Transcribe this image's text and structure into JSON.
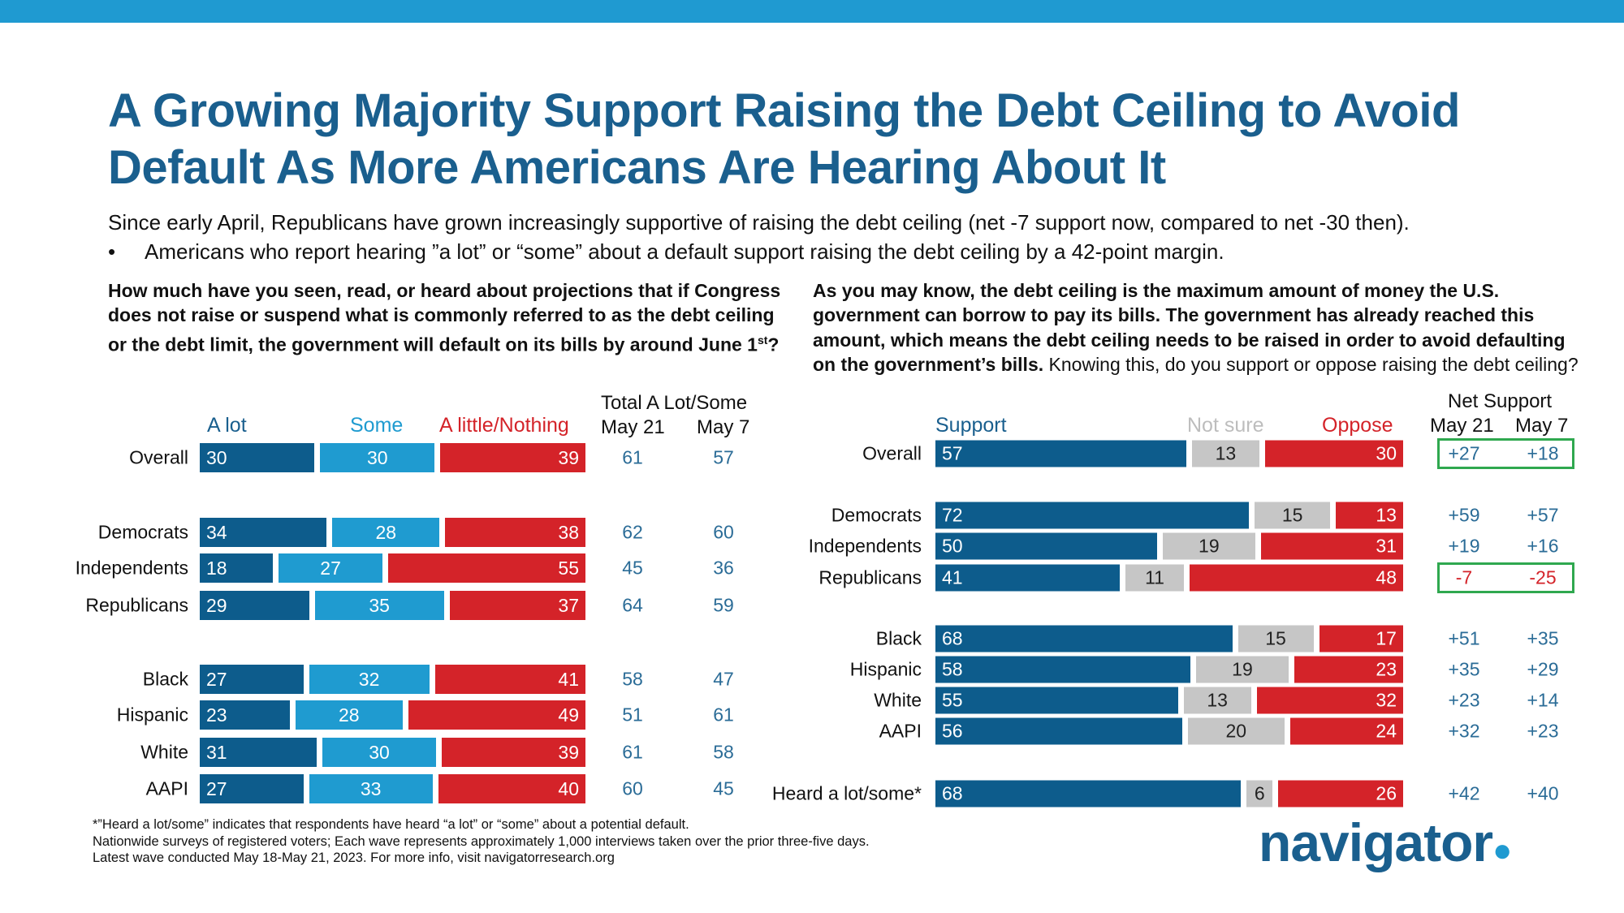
{
  "title": "A Growing Majority Support Raising the Debt Ceiling to Avoid Default As More Americans Are Hearing About It",
  "subtitle": "Since early April, Republicans have grown increasingly supportive of raising the debt ceiling (net -7 support now, compared to net -30 then).",
  "bullet": "Americans who report hearing ”a lot” or “some” about a default support raising the debt ceiling by a 42-point margin.",
  "bullet_mark": "•",
  "colors": {
    "dark_blue": "#0d5c8c",
    "light_blue": "#1f9bd0",
    "red": "#d42329",
    "gray": "#c6c6c6",
    "title": "#1a5f8e",
    "highlight": "#2fa84f"
  },
  "chart_data": [
    {
      "type": "bar",
      "stacked": true,
      "orientation": "horizontal",
      "title": "How much have you seen, read, or heard about projections that if Congress does not raise or suspend what is commonly referred to as the debt ceiling or the debt limit, the government will default on its bills by around June 1",
      "title_sup": "st",
      "title_end": "?",
      "series_names": [
        "A lot",
        "Some",
        "A little/Nothing"
      ],
      "total_header": "Total A Lot/Some",
      "col_headers": [
        "May 21",
        "May 7"
      ],
      "rows": [
        {
          "label": "Overall",
          "values": [
            30,
            30,
            39
          ],
          "totals": [
            61,
            57
          ]
        },
        {
          "label": "Democrats",
          "values": [
            34,
            28,
            38
          ],
          "totals": [
            62,
            60
          ]
        },
        {
          "label": "Independents",
          "values": [
            18,
            27,
            55
          ],
          "totals": [
            45,
            36
          ]
        },
        {
          "label": "Republicans",
          "values": [
            29,
            35,
            37
          ],
          "totals": [
            64,
            59
          ]
        },
        {
          "label": "Black",
          "values": [
            27,
            32,
            41
          ],
          "totals": [
            58,
            47
          ]
        },
        {
          "label": "Hispanic",
          "values": [
            23,
            28,
            49
          ],
          "totals": [
            51,
            61
          ]
        },
        {
          "label": "White",
          "values": [
            31,
            30,
            39
          ],
          "totals": [
            61,
            58
          ]
        },
        {
          "label": "AAPI",
          "values": [
            27,
            33,
            40
          ],
          "totals": [
            60,
            45
          ]
        }
      ]
    },
    {
      "type": "bar",
      "stacked": true,
      "orientation": "horizontal",
      "title_bold": "As you may know, the debt ceiling is the maximum amount of money the U.S. government can borrow to pay its bills. The government has already reached this amount, which means the debt ceiling needs to be raised in order to avoid defaulting on the government’s bills.",
      "title_normal": " Knowing this, do you support or oppose raising the debt ceiling?",
      "series_names": [
        "Support",
        "Not sure",
        "Oppose"
      ],
      "net_header": "Net Support",
      "col_headers": [
        "May 21",
        "May 7"
      ],
      "rows": [
        {
          "label": "Overall",
          "values": [
            57,
            13,
            30
          ],
          "net": [
            "+27",
            "+18"
          ],
          "highlight": true
        },
        {
          "label": "Democrats",
          "values": [
            72,
            15,
            13
          ],
          "net": [
            "+59",
            "+57"
          ]
        },
        {
          "label": "Independents",
          "values": [
            50,
            19,
            31
          ],
          "net": [
            "+19",
            "+16"
          ]
        },
        {
          "label": "Republicans",
          "values": [
            41,
            11,
            48
          ],
          "net": [
            "-7",
            "-25"
          ],
          "highlight": true
        },
        {
          "label": "Black",
          "values": [
            68,
            15,
            17
          ],
          "net": [
            "+51",
            "+35"
          ]
        },
        {
          "label": "Hispanic",
          "values": [
            58,
            19,
            23
          ],
          "net": [
            "+35",
            "+29"
          ]
        },
        {
          "label": "White",
          "values": [
            55,
            13,
            32
          ],
          "net": [
            "+23",
            "+14"
          ]
        },
        {
          "label": "AAPI",
          "values": [
            56,
            20,
            24
          ],
          "net": [
            "+32",
            "+23"
          ]
        },
        {
          "label": "Heard a lot/some*",
          "values": [
            68,
            6,
            26
          ],
          "net": [
            "+42",
            "+40"
          ]
        }
      ]
    }
  ],
  "footnotes": [
    "*”Heard a lot/some” indicates that respondents have heard “a lot” or “some” about a potential default.",
    "Nationwide surveys of registered voters; Each wave represents approximately 1,000 interviews taken over the prior three-five days.",
    "Latest wave conducted May 18-May 21, 2023. For more info, visit navigatorresearch.org"
  ],
  "logo": "navigator"
}
